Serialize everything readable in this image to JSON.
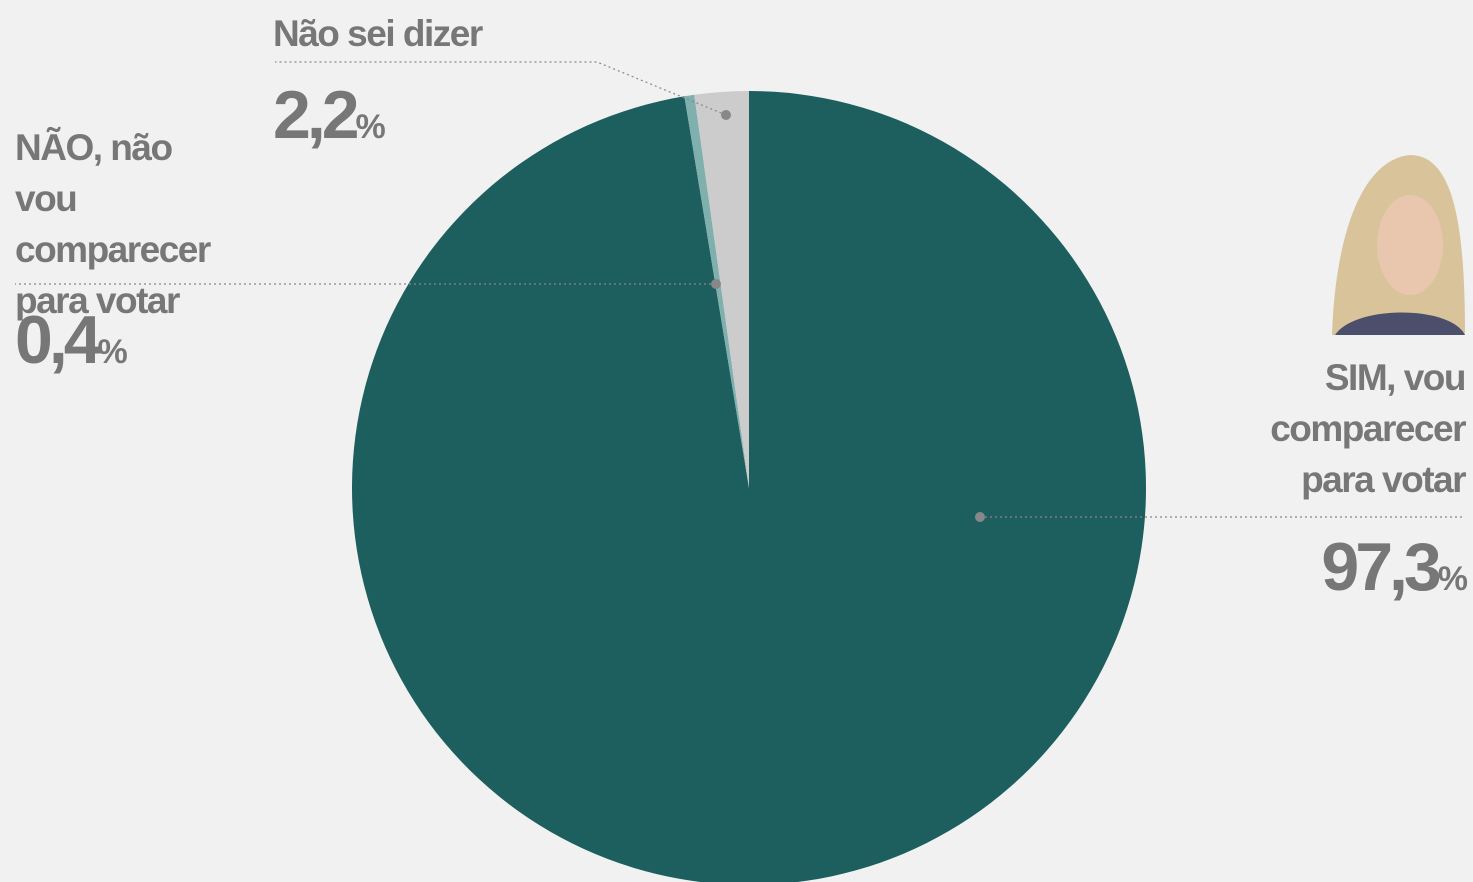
{
  "chart_data": {
    "type": "pie",
    "categories": [
      "SIM, vou comparecer para votar",
      "NÃO, não vou comparecer para votar",
      "Não sei dizer"
    ],
    "values": [
      97.3,
      0.4,
      2.2
    ],
    "value_labels": [
      "97,3%",
      "0,4%",
      "2,2%"
    ],
    "colors": [
      "#1d5e5e",
      "#7fb0ad",
      "#cccccc"
    ]
  }
}
